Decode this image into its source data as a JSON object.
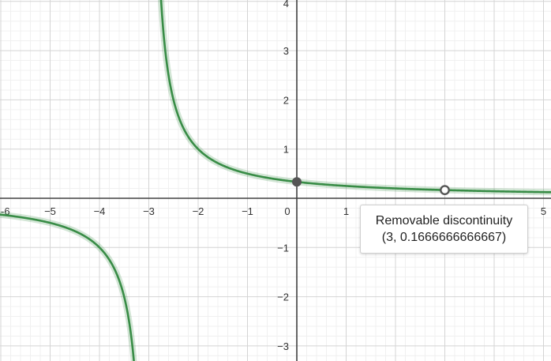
{
  "chart_data": {
    "type": "line",
    "xlim": [
      -6,
      5
    ],
    "ylim": [
      -3,
      4
    ],
    "x_ticks": [
      -6,
      -5,
      -4,
      -3,
      -2,
      -1,
      0,
      1,
      2,
      3,
      4,
      5
    ],
    "y_ticks": [
      -3,
      -2,
      -1,
      0,
      1,
      2,
      3,
      4
    ],
    "x_tick_labels": [
      "-6",
      "−5",
      "−4",
      "−3",
      "−2",
      "−1",
      "0",
      "1",
      "2",
      "3",
      "4",
      "5"
    ],
    "y_tick_labels": [
      "−3",
      "−2",
      "−1",
      "",
      "1",
      "2",
      "3",
      "4"
    ],
    "grid": true,
    "minor_grid": true,
    "series": [
      {
        "color": "#388c46",
        "formula": "1/(x+3)",
        "vertical_asymptote": -3,
        "points": [
          [
            -6,
            -0.333
          ],
          [
            -5,
            -0.5
          ],
          [
            -4.5,
            -0.667
          ],
          [
            -4,
            -1
          ],
          [
            -3.75,
            -1.333
          ],
          [
            -3.5,
            -2
          ],
          [
            -3.33,
            -3
          ],
          [
            -2.75,
            4
          ],
          [
            -2.5,
            2
          ],
          [
            -2,
            1
          ],
          [
            -1.5,
            0.667
          ],
          [
            -1,
            0.5
          ],
          [
            0,
            0.333
          ],
          [
            1,
            0.25
          ],
          [
            2,
            0.2
          ],
          [
            3,
            0.1667
          ],
          [
            4,
            0.143
          ],
          [
            5,
            0.125
          ]
        ]
      }
    ],
    "points": [
      {
        "kind": "filled",
        "x": 0,
        "y": 0.333,
        "color": "#555555"
      },
      {
        "kind": "hollow",
        "x": 3,
        "y": 0.1666666666667,
        "color": "#555555"
      }
    ],
    "annotation": {
      "title": "Removable discontinuity",
      "coords": "(3, 0.1666666666667)"
    }
  }
}
